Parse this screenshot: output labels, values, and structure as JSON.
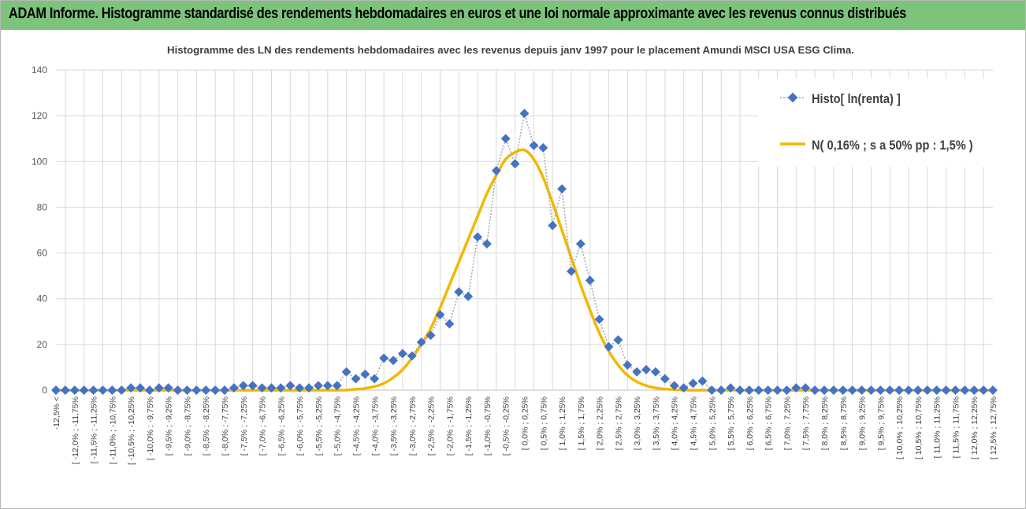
{
  "banner": {
    "title": "ADAM Informe. Histogramme standardisé des rendements hebdomadaires en euros et une loi normale approximante avec les revenus connus distribués"
  },
  "colors": {
    "banner": "#7cc47c",
    "histo_marker": "#4472c4",
    "histo_line": "#a6a6a6",
    "normal_line": "#f2b800",
    "grid": "#d9d9d9"
  },
  "chart_data": {
    "type": "line",
    "title": "Histogramme  des LN des rendements hebdomadaires avec les revenus depuis janv 1997 pour le placement Amundi MSCI USA ESG Clima.",
    "xlabel": "",
    "ylabel": "",
    "ylim": [
      0,
      140
    ],
    "yticks": [
      0,
      20,
      40,
      60,
      80,
      100,
      120,
      140
    ],
    "grid": true,
    "legend_position": "top-right",
    "categories": [
      "-12,5% <",
      "[ -12,25% ; -12,0%",
      "[ -12,0% ; -11,75%",
      "[ -11,75% ; -11,5%",
      "[ -11,5% ; -11,25%",
      "[ -11,25% ; -11,0%",
      "[ -11,0% ; -10,75%",
      "[ -10,75% ; -10,5%",
      "[ -10,5% ; -10,25%",
      "[ -10,25% ; -10,0%",
      "[ -10,0% ; -9,75%",
      "[ -9,75% ; -9,5%",
      "[ -9,5% ; -9,25%",
      "[ -9,25% ; -9,0%",
      "[ -9,0% ; -8,75%",
      "[ -8,75% ; -8,5%",
      "[ -8,5% ; -8,25%",
      "[ -8,25% ; -8,0%",
      "[ -8,0% ; -7,75%",
      "[ -7,75% ; -7,5%",
      "[ -7,5% ; -7,25%",
      "[ -7,25% ; -7,0%",
      "[ -7,0% ; -6,75%",
      "[ -6,75% ; -6,5%",
      "[ -6,5% ; -6,25%",
      "[ -6,25% ; -6,0%",
      "[ -6,0% ; -5,75%",
      "[ -5,75% ; -5,5%",
      "[ -5,5% ; -5,25%",
      "[ -5,25% ; -5,0%",
      "[ -5,0% ; -4,75%",
      "[ -4,75% ; -4,5%",
      "[ -4,5% ; -4,25%",
      "[ -4,25% ; -4,0%",
      "[ -4,0% ; -3,75%",
      "[ -3,75% ; -3,5%",
      "[ -3,5% ; -3,25%",
      "[ -3,25% ; -3,0%",
      "[ -3,0% ; -2,75%",
      "[ -2,75% ; -2,5%",
      "[ -2,5% ; -2,25%",
      "[ -2,25% ; -2,0%",
      "[ -2,0% ; -1,75%",
      "[ -1,75% ; -1,5%",
      "[ -1,5% ; -1,25%",
      "[ -1,25% ; -1,0%",
      "[ -1,0% ; -0,75%",
      "[ -0,75% ; -0,5%",
      "[ -0,5% ; -0,25%",
      "[ -0,25% ; 0,0%",
      "[ 0,0% ; 0,25%",
      "[ 0,25% ; 0,5%",
      "[ 0,5% ; 0,75%",
      "[ 0,75% ; 1,0%",
      "[ 1,0% ; 1,25%",
      "[ 1,25% ; 1,5%",
      "[ 1,5% ; 1,75%",
      "[ 1,75% ; 2,0%",
      "[ 2,0% ; 2,25%",
      "[ 2,25% ; 2,5%",
      "[ 2,5% ; 2,75%",
      "[ 2,75% ; 3,0%",
      "[ 3,0% ; 3,25%",
      "[ 3,25% ; 3,5%",
      "[ 3,5% ; 3,75%",
      "[ 3,75% ; 4,0%",
      "[ 4,0% ; 4,25%",
      "[ 4,25% ; 4,5%",
      "[ 4,5% ; 4,75%",
      "[ 4,75% ; 5,0%",
      "[ 5,0% ; 5,25%",
      "[ 5,25% ; 5,5%",
      "[ 5,5% ; 5,75%",
      "[ 5,75% ; 6,0%",
      "[ 6,0% ; 6,25%",
      "[ 6,25% ; 6,5%",
      "[ 6,5% ; 6,75%",
      "[ 6,75% ; 7,0%",
      "[ 7,0% ; 7,25%",
      "[ 7,25% ; 7,5%",
      "[ 7,5% ; 7,75%",
      "[ 7,75% ; 8,0%",
      "[ 8,0% ; 8,25%",
      "[ 8,25% ; 8,5%",
      "[ 8,5% ; 8,75%",
      "[ 8,75% ; 9,0%",
      "[ 9,0% ; 9,25%",
      "[ 9,25% ; 9,5%",
      "[ 9,5% ; 9,75%",
      "[ 9,75% ; 10,0%",
      "[ 10,0% ; 10,25%",
      "[ 10,25% ; 10,5%",
      "[ 10,5% ; 10,75%",
      "[ 10,75% ; 11,0%",
      "[ 11,0% ; 11,25%",
      "[ 11,25% ; 11,5%",
      "[ 11,5% ; 11,75%",
      "[ 11,75% ; 12,0%",
      "[ 12,0% ; 12,25%",
      "[ 12,25% ; 12,5%",
      "[ 12,5% ; 12,75%"
    ],
    "series": [
      {
        "name": "Histo[ ln(renta) ]",
        "style": "markers-dotted",
        "values": [
          0,
          0,
          0,
          0,
          0,
          0,
          0,
          0,
          1,
          1,
          0,
          1,
          1,
          0,
          0,
          0,
          0,
          0,
          0,
          1,
          2,
          2,
          1,
          1,
          1,
          2,
          1,
          1,
          2,
          2,
          2,
          8,
          5,
          7,
          5,
          14,
          13,
          16,
          15,
          21,
          24,
          33,
          29,
          43,
          41,
          67,
          64,
          96,
          110,
          99,
          121,
          107,
          106,
          72,
          88,
          52,
          64,
          48,
          31,
          19,
          22,
          11,
          8,
          9,
          8,
          5,
          2,
          1,
          3,
          4,
          0,
          0,
          1,
          0,
          0,
          0,
          0,
          0,
          0,
          1,
          1,
          0,
          0,
          0,
          0,
          0,
          0,
          0,
          0,
          0,
          0,
          0,
          0,
          0,
          0,
          0,
          0,
          0,
          0,
          0,
          0
        ]
      },
      {
        "name": "N( 0,16% ; s a 50% pp : 1,5% )",
        "style": "smooth-line",
        "values": [
          0,
          0,
          0,
          0,
          0,
          0,
          0,
          0,
          0,
          0,
          0,
          0,
          0,
          0,
          0,
          0,
          0,
          0,
          0,
          0,
          0,
          0,
          0,
          0,
          0,
          0,
          0,
          0,
          0,
          0,
          0,
          0.1,
          0.4,
          0.8,
          1.6,
          3,
          5.5,
          9,
          14,
          20,
          27,
          36,
          46,
          56,
          66,
          76,
          86,
          94,
          101,
          104,
          105,
          101,
          93,
          82,
          70,
          58,
          46,
          35,
          25,
          17,
          11,
          6.5,
          3.7,
          2,
          1,
          0.5,
          0.2,
          0.1,
          0,
          0,
          0,
          0,
          0,
          0,
          0,
          0,
          0,
          0,
          0,
          0,
          0,
          0,
          0,
          0,
          0,
          0,
          0,
          0,
          0,
          0,
          0,
          0,
          0,
          0,
          0,
          0,
          0,
          0,
          0,
          0,
          0
        ]
      }
    ]
  }
}
